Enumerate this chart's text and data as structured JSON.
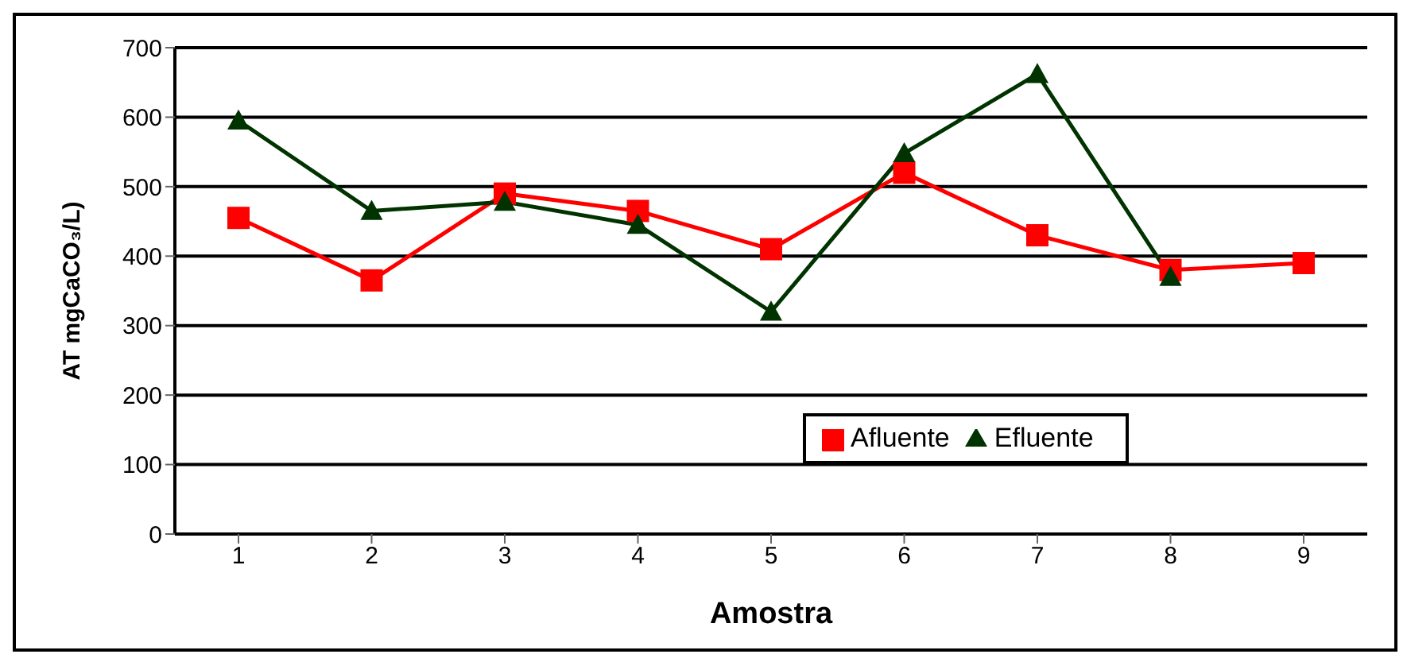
{
  "chart_data": {
    "type": "line",
    "xlabel": "Amostra",
    "ylabel": "AT mgCaCO₃/L)",
    "categories": [
      "1",
      "2",
      "3",
      "4",
      "5",
      "6",
      "7",
      "8",
      "9"
    ],
    "series": [
      {
        "name": "Afluente",
        "color": "#ff0000",
        "marker": "square",
        "values": [
          455,
          365,
          490,
          465,
          410,
          520,
          430,
          380,
          390
        ]
      },
      {
        "name": "Efluente",
        "color": "#003300",
        "marker": "triangle",
        "values": [
          595,
          465,
          478,
          445,
          320,
          548,
          662,
          370,
          null
        ]
      }
    ],
    "ylim": [
      0,
      700
    ],
    "yticks": [
      0,
      100,
      200,
      300,
      400,
      500,
      600,
      700
    ],
    "grid": "y",
    "legend": "bottom right",
    "line_style": "solid"
  }
}
